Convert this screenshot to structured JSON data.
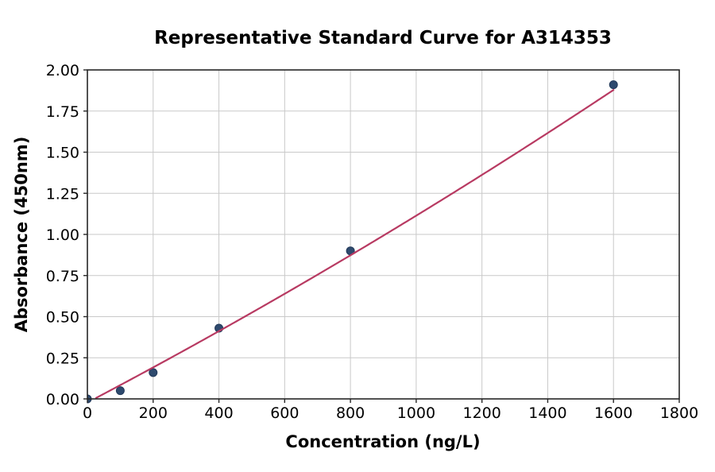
{
  "chart_data": {
    "type": "scatter",
    "title": "Representative Standard Curve for A314353",
    "xlabel": "Concentration (ng/L)",
    "ylabel": "Absorbance (450nm)",
    "xlim": [
      0,
      1800
    ],
    "ylim": [
      0,
      2.0
    ],
    "x_ticks": [
      0,
      200,
      400,
      600,
      800,
      1000,
      1200,
      1400,
      1600,
      1800
    ],
    "y_ticks": [
      0.0,
      0.25,
      0.5,
      0.75,
      1.0,
      1.25,
      1.5,
      1.75,
      2.0
    ],
    "y_tick_decimals": 2,
    "grid": true,
    "legend_position": "none",
    "series": [
      {
        "name": "standard-points",
        "type": "scatter",
        "marker": "circle",
        "marker_radius": 5,
        "color": "#2e4a6e",
        "edge_color": "#22395a",
        "x": [
          0,
          100,
          200,
          400,
          800,
          1600
        ],
        "y": [
          0.0,
          0.05,
          0.16,
          0.43,
          0.9,
          1.91
        ]
      },
      {
        "name": "fit-curve",
        "type": "line",
        "fit": "quadratic",
        "coefficients": {
          "c2": 8.6e-08,
          "c1": 0.00105,
          "c0": -0.022
        },
        "x_range": [
          0,
          1600
        ],
        "color": "#b83a62",
        "line_width": 2.2
      }
    ],
    "colors": {
      "grid": "#c9c9c9",
      "spine": "#262626",
      "tick": "#262626",
      "text": "#000000",
      "background": "#ffffff"
    }
  }
}
